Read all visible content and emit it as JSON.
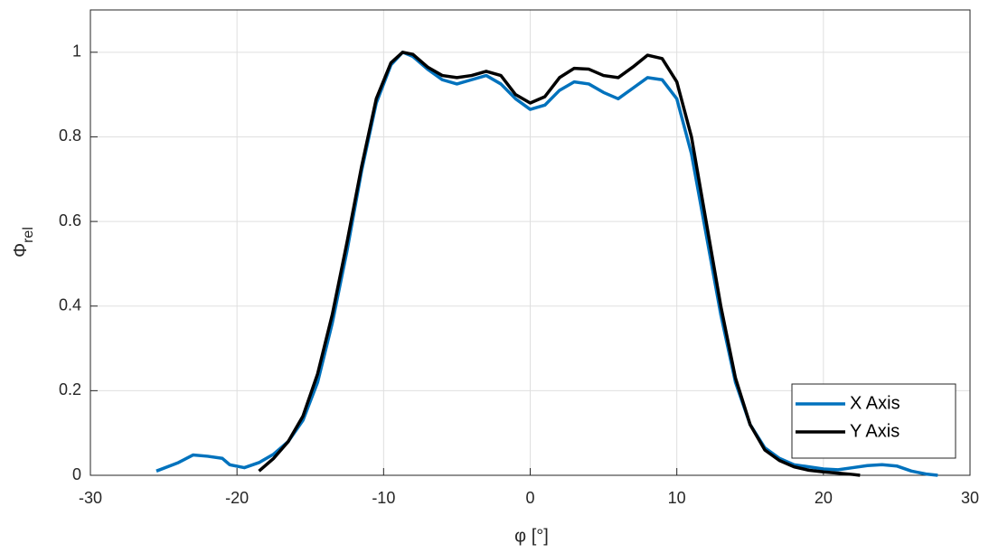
{
  "chart_data": {
    "type": "line",
    "xlabel": "φ [°]",
    "ylabel": "Φ",
    "ylabel_sub": "rel",
    "xlim": [
      -30,
      30
    ],
    "ylim": [
      0,
      1.1
    ],
    "xticks": [
      -30,
      -20,
      -10,
      0,
      10,
      20,
      30
    ],
    "yticks": [
      0,
      0.2,
      0.4,
      0.6,
      0.8,
      1
    ],
    "grid": true,
    "legend": "southeast",
    "series": [
      {
        "name": "X Axis",
        "color": "#0072bd",
        "x": [
          -25.5,
          -24,
          -23,
          -22,
          -21,
          -20.5,
          -19.5,
          -18.5,
          -17.5,
          -16.5,
          -15.5,
          -14.5,
          -13.5,
          -12.5,
          -11.5,
          -10.5,
          -9.5,
          -8.7,
          -8,
          -7,
          -6,
          -5,
          -4,
          -3,
          -2,
          -1,
          0,
          1,
          2,
          3,
          4,
          5,
          6,
          7,
          8,
          9,
          10,
          11,
          12,
          13,
          14,
          15,
          16,
          17,
          18,
          19,
          20,
          21,
          22,
          23,
          24,
          25,
          26,
          27,
          27.8
        ],
        "values": [
          0.01,
          0.03,
          0.048,
          0.045,
          0.04,
          0.025,
          0.018,
          0.03,
          0.05,
          0.08,
          0.13,
          0.22,
          0.36,
          0.53,
          0.72,
          0.88,
          0.97,
          1.0,
          0.99,
          0.96,
          0.935,
          0.925,
          0.935,
          0.945,
          0.925,
          0.89,
          0.865,
          0.875,
          0.91,
          0.93,
          0.925,
          0.905,
          0.89,
          0.915,
          0.94,
          0.935,
          0.89,
          0.76,
          0.57,
          0.38,
          0.22,
          0.12,
          0.065,
          0.04,
          0.025,
          0.02,
          0.015,
          0.013,
          0.018,
          0.023,
          0.025,
          0.022,
          0.01,
          0.003,
          0.0
        ]
      },
      {
        "name": "Y Axis",
        "color": "#000000",
        "x": [
          -18.5,
          -17.5,
          -16.5,
          -15.5,
          -14.5,
          -13.5,
          -12.5,
          -11.5,
          -10.5,
          -9.5,
          -8.7,
          -8,
          -7,
          -6,
          -5,
          -4,
          -3,
          -2,
          -1,
          0,
          1,
          2,
          3,
          4,
          5,
          6,
          7,
          8,
          9,
          10,
          11,
          12,
          13,
          14,
          15,
          16,
          17,
          18,
          19,
          20,
          21,
          22,
          22.5
        ],
        "values": [
          0.01,
          0.04,
          0.08,
          0.14,
          0.24,
          0.38,
          0.55,
          0.73,
          0.89,
          0.975,
          1.0,
          0.995,
          0.965,
          0.945,
          0.94,
          0.945,
          0.955,
          0.945,
          0.9,
          0.88,
          0.895,
          0.94,
          0.962,
          0.96,
          0.945,
          0.94,
          0.965,
          0.993,
          0.985,
          0.93,
          0.8,
          0.6,
          0.4,
          0.23,
          0.12,
          0.06,
          0.035,
          0.02,
          0.012,
          0.008,
          0.005,
          0.002,
          0.0
        ]
      }
    ]
  }
}
